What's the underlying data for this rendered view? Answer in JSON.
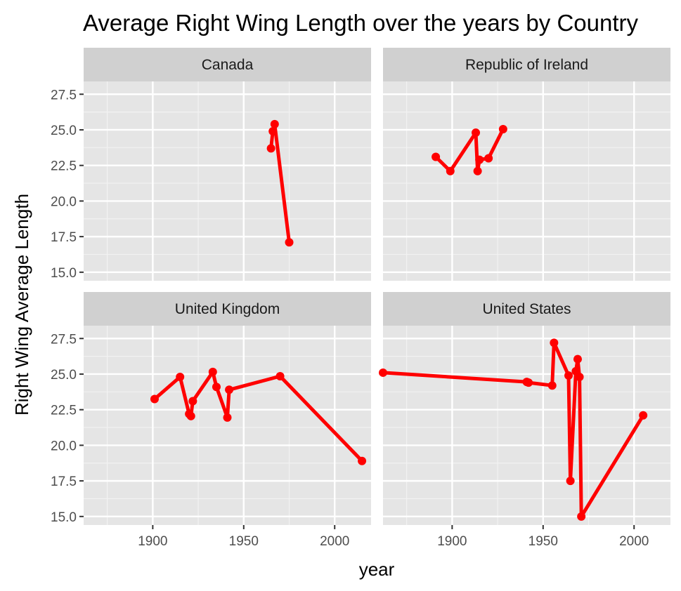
{
  "chart_data": {
    "type": "line",
    "title": "Average Right Wing Length over the years by Country",
    "xlabel": "year",
    "ylabel": "Right Wing Average Length",
    "xlim": [
      1862,
      2020
    ],
    "ylim": [
      14.4,
      28.4
    ],
    "x_ticks": [
      1900,
      1950,
      2000
    ],
    "y_ticks": [
      15.0,
      17.5,
      20.0,
      22.5,
      25.0,
      27.5
    ],
    "y_tick_labels": [
      "15.0",
      "17.5",
      "20.0",
      "22.5",
      "25.0",
      "27.5"
    ],
    "x_minor_ticks": [
      1875,
      1925,
      1975
    ],
    "y_minor_ticks": [
      16.25,
      18.75,
      21.25,
      23.75,
      26.25
    ],
    "grid": true,
    "line_color": "#ff0000",
    "panel_background": "#e5e5e5",
    "strip_background": "#d0d0d0",
    "facets": [
      {
        "label": "Canada",
        "x": [
          1965,
          1966,
          1967,
          1975
        ],
        "y": [
          23.7,
          24.9,
          25.4,
          17.1
        ]
      },
      {
        "label": "Republic of Ireland",
        "x": [
          1891,
          1899,
          1913,
          1914,
          1915,
          1920,
          1928
        ],
        "y": [
          23.1,
          22.1,
          24.8,
          22.1,
          22.9,
          23.0,
          25.05
        ]
      },
      {
        "label": "United Kingdom",
        "x": [
          1901,
          1915,
          1920,
          1921,
          1922,
          1933,
          1935,
          1941,
          1942,
          1970,
          2015
        ],
        "y": [
          23.25,
          24.8,
          22.2,
          22.05,
          23.1,
          25.15,
          24.1,
          21.95,
          23.9,
          24.85,
          18.9
        ]
      },
      {
        "label": "United States",
        "x": [
          1862,
          1941,
          1942,
          1955,
          1956,
          1964,
          1965,
          1968,
          1969,
          1970,
          1971,
          2005
        ],
        "y": [
          25.1,
          24.45,
          24.4,
          24.2,
          27.2,
          24.9,
          17.5,
          25.2,
          26.05,
          24.8,
          15.0,
          22.1
        ]
      }
    ]
  }
}
